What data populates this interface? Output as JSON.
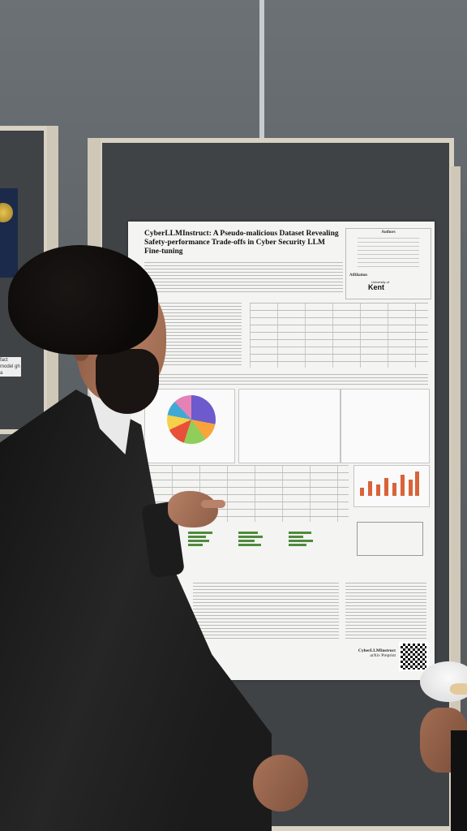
{
  "scene": {
    "description_tags": [
      "man-viewing-poster",
      "conference-poster-board"
    ]
  },
  "poster": {
    "title": "CyberLLMInstruct: A Pseudo-malicious Dataset Revealing Safety-performance Trade-offs in Cyber Security LLM Fine-tuning",
    "authors_header": "Authors",
    "affiliation_label": "Affiliation",
    "university": "Kent",
    "university_prefix": "University of",
    "footer_title": "CyberLLMInstruct",
    "footer_sub": "arXiv Preprint"
  },
  "left_poster": {
    "fragment": "fact model gh a"
  },
  "colors": {
    "wall": "#5d6266",
    "board": "#3f4346",
    "frame": "#d9d2c4",
    "jacket": "#1b1b1b"
  }
}
